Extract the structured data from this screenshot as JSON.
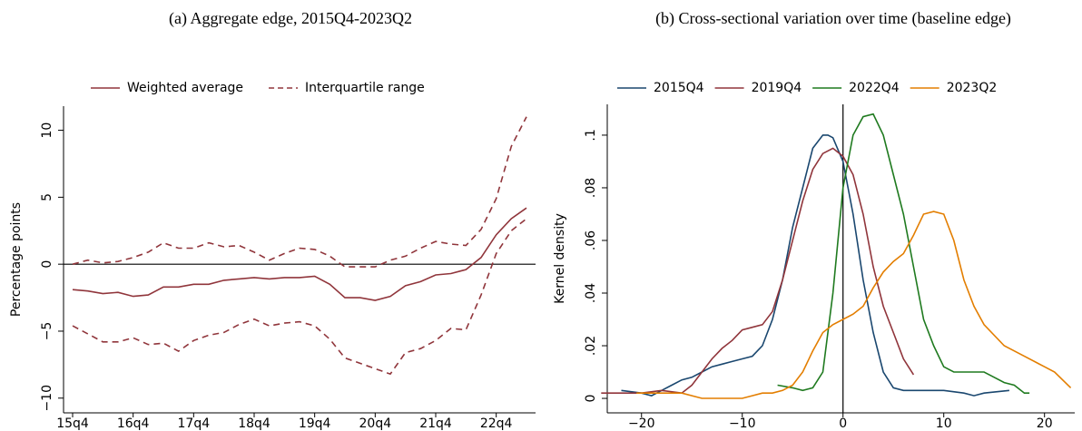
{
  "chart_data": [
    {
      "type": "line",
      "title": "(a) Aggregate edge, 2015Q4-2023Q2",
      "y_label": "Percentage points",
      "categories": [
        "15q4",
        null,
        null,
        null,
        "16q4",
        null,
        null,
        null,
        "17q4",
        null,
        null,
        null,
        "18q4",
        null,
        null,
        null,
        "19q4",
        null,
        null,
        null,
        "20q4",
        null,
        null,
        null,
        "21q4",
        null,
        null,
        null,
        "22q4",
        null,
        null
      ],
      "series": [
        {
          "name": "Weighted average",
          "color": "#90353b",
          "values": [
            -1.9,
            -2.0,
            -2.2,
            -2.1,
            -2.4,
            -2.3,
            -1.7,
            -1.7,
            -1.5,
            -1.5,
            -1.2,
            -1.1,
            -1.0,
            -1.1,
            -1.0,
            -1.0,
            -0.9,
            -1.5,
            -2.5,
            -2.5,
            -2.7,
            -2.4,
            -1.6,
            -1.3,
            -0.8,
            -0.7,
            -0.4,
            0.5,
            2.2,
            3.4,
            4.2
          ]
        },
        {
          "name": "Interquartile range",
          "color": "#90353b",
          "dashed": true,
          "upper": [
            0,
            0.3,
            0.1,
            0.2,
            0.5,
            0.9,
            1.6,
            1.2,
            1.2,
            1.6,
            1.3,
            1.4,
            0.9,
            0.3,
            0.8,
            1.2,
            1.1,
            0.6,
            -0.2,
            -0.2,
            -0.2,
            0.3,
            0.6,
            1.2,
            1.7,
            1.5,
            1.4,
            2.6,
            4.9,
            8.8,
            11.0
          ],
          "lower": [
            -4.6,
            -5.2,
            -5.8,
            -5.8,
            -5.5,
            -6.0,
            -5.9,
            -6.5,
            -5.7,
            -5.3,
            -5.1,
            -4.5,
            -4.1,
            -4.6,
            -4.4,
            -4.3,
            -4.6,
            -5.6,
            -7.0,
            -7.4,
            -7.8,
            -8.2,
            -6.6,
            -6.3,
            -5.7,
            -4.8,
            -4.9,
            -2.3,
            0.8,
            2.5,
            3.4
          ]
        }
      ],
      "ylim": [
        -11.1,
        11.8
      ],
      "yticks": [
        {
          "value": -10,
          "label": "−10"
        },
        {
          "value": -5,
          "label": "−5"
        },
        0,
        5,
        10
      ],
      "hline": 0
    },
    {
      "type": "density",
      "title": "(b) Cross-sectional variation over time (baseline edge)",
      "y_label": "Kernel density",
      "series": [
        {
          "name": "2015Q4",
          "color": "#1a476f",
          "x": [
            -22,
            -20,
            -19,
            -18,
            -17,
            -16,
            -15,
            -14,
            -13,
            -12,
            -11,
            -10,
            -9,
            -8,
            -7,
            -6,
            -5,
            -4,
            -3,
            -2,
            -1.5,
            -1,
            0,
            1,
            2,
            3,
            4,
            5,
            6,
            7,
            8,
            10,
            12,
            13,
            14,
            16.5
          ],
          "values": [
            0.003,
            0.002,
            0.001,
            0.003,
            0.005,
            0.007,
            0.008,
            0.01,
            0.012,
            0.013,
            0.014,
            0.015,
            0.016,
            0.02,
            0.03,
            0.045,
            0.065,
            0.08,
            0.095,
            0.1,
            0.1,
            0.099,
            0.09,
            0.07,
            0.045,
            0.025,
            0.01,
            0.004,
            0.003,
            0.003,
            0.003,
            0.003,
            0.002,
            0.001,
            0.002,
            0.003
          ]
        },
        {
          "name": "2019Q4",
          "color": "#90353b",
          "x": [
            -24,
            -22,
            -20,
            -18,
            -16,
            -15,
            -14,
            -13,
            -12,
            -11,
            -10,
            -9,
            -8,
            -7,
            -6,
            -5,
            -4,
            -3,
            -2,
            -1,
            0,
            1,
            2,
            3,
            4,
            5,
            6,
            7
          ],
          "values": [
            0.002,
            0.002,
            0.002,
            0.003,
            0.002,
            0.005,
            0.01,
            0.015,
            0.019,
            0.022,
            0.026,
            0.027,
            0.028,
            0.033,
            0.045,
            0.06,
            0.075,
            0.087,
            0.093,
            0.095,
            0.092,
            0.085,
            0.07,
            0.05,
            0.035,
            0.025,
            0.015,
            0.009
          ]
        },
        {
          "name": "2022Q4",
          "color": "#1f7a1f",
          "x": [
            -6.5,
            -5,
            -4,
            -3,
            -2,
            -1,
            0,
            1,
            2,
            3,
            4,
            5,
            6,
            7,
            8,
            9,
            10,
            11,
            12,
            13,
            14,
            15,
            16,
            17,
            18,
            18.5
          ],
          "values": [
            0.005,
            0.004,
            0.003,
            0.004,
            0.01,
            0.04,
            0.08,
            0.1,
            0.107,
            0.108,
            0.1,
            0.085,
            0.07,
            0.05,
            0.03,
            0.02,
            0.012,
            0.01,
            0.01,
            0.01,
            0.01,
            0.008,
            0.006,
            0.005,
            0.002,
            0.002
          ]
        },
        {
          "name": "2023Q2",
          "color": "#e37e00",
          "x": [
            -20.5,
            -18,
            -16,
            -14,
            -12,
            -10,
            -9,
            -8,
            -7,
            -6,
            -5,
            -4,
            -3,
            -2,
            -1,
            0,
            1,
            2,
            3,
            4,
            5,
            6,
            7,
            8,
            9,
            10,
            11,
            12,
            13,
            14,
            16,
            18,
            20,
            21,
            22.6
          ],
          "values": [
            0.002,
            0.002,
            0.002,
            0,
            0,
            0,
            0.001,
            0.002,
            0.002,
            0.003,
            0.005,
            0.01,
            0.018,
            0.025,
            0.028,
            0.03,
            0.032,
            0.035,
            0.042,
            0.048,
            0.052,
            0.055,
            0.062,
            0.07,
            0.071,
            0.07,
            0.06,
            0.045,
            0.035,
            0.028,
            0.02,
            0.016,
            0.012,
            0.01,
            0.004
          ]
        }
      ],
      "xlim": [
        -23.4,
        23
      ],
      "xticks": [
        {
          "value": -20,
          "label": "−20"
        },
        {
          "value": -10,
          "label": "−10"
        },
        0,
        10,
        20
      ],
      "ylim": [
        -0.0055,
        0.1117
      ],
      "yticks": [
        0,
        {
          "value": 0.02,
          "label": ".02"
        },
        {
          "value": 0.04,
          "label": ".04"
        },
        {
          "value": 0.06,
          "label": ".06"
        },
        {
          "value": 0.08,
          "label": ".08"
        },
        {
          "value": 0.1,
          "label": ".1"
        }
      ],
      "vline": 0
    }
  ]
}
